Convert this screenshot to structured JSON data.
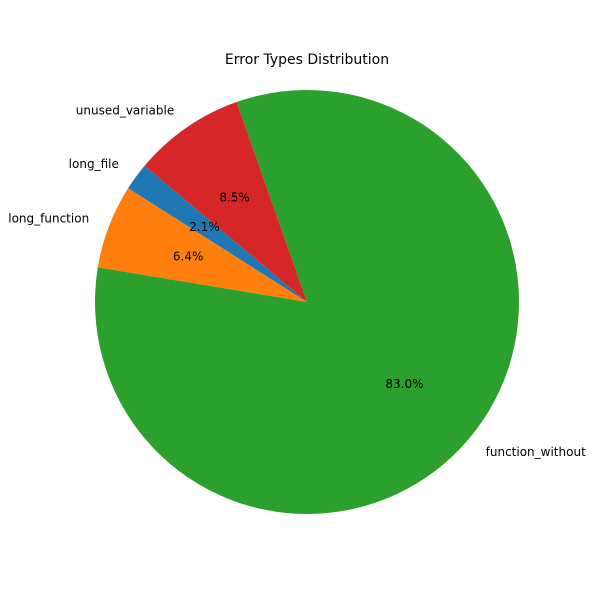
{
  "chart_data": {
    "type": "pie",
    "title": "Error Types Distribution",
    "labels": [
      "long_file",
      "long_function",
      "function_without",
      "unused_variable"
    ],
    "display_labels": [
      "long_file",
      "long_function",
      "function_without",
      "unused_variable"
    ],
    "values": [
      2.1,
      6.4,
      83.0,
      8.5
    ],
    "percent_labels": [
      "2.1%",
      "6.4%",
      "83.0%",
      "8.5%"
    ],
    "colors": [
      "#1f77b4",
      "#ff7f0e",
      "#2ca02c",
      "#d62728"
    ],
    "start_angle_deg": 140,
    "direction": "counterclockwise",
    "legend": "none"
  }
}
